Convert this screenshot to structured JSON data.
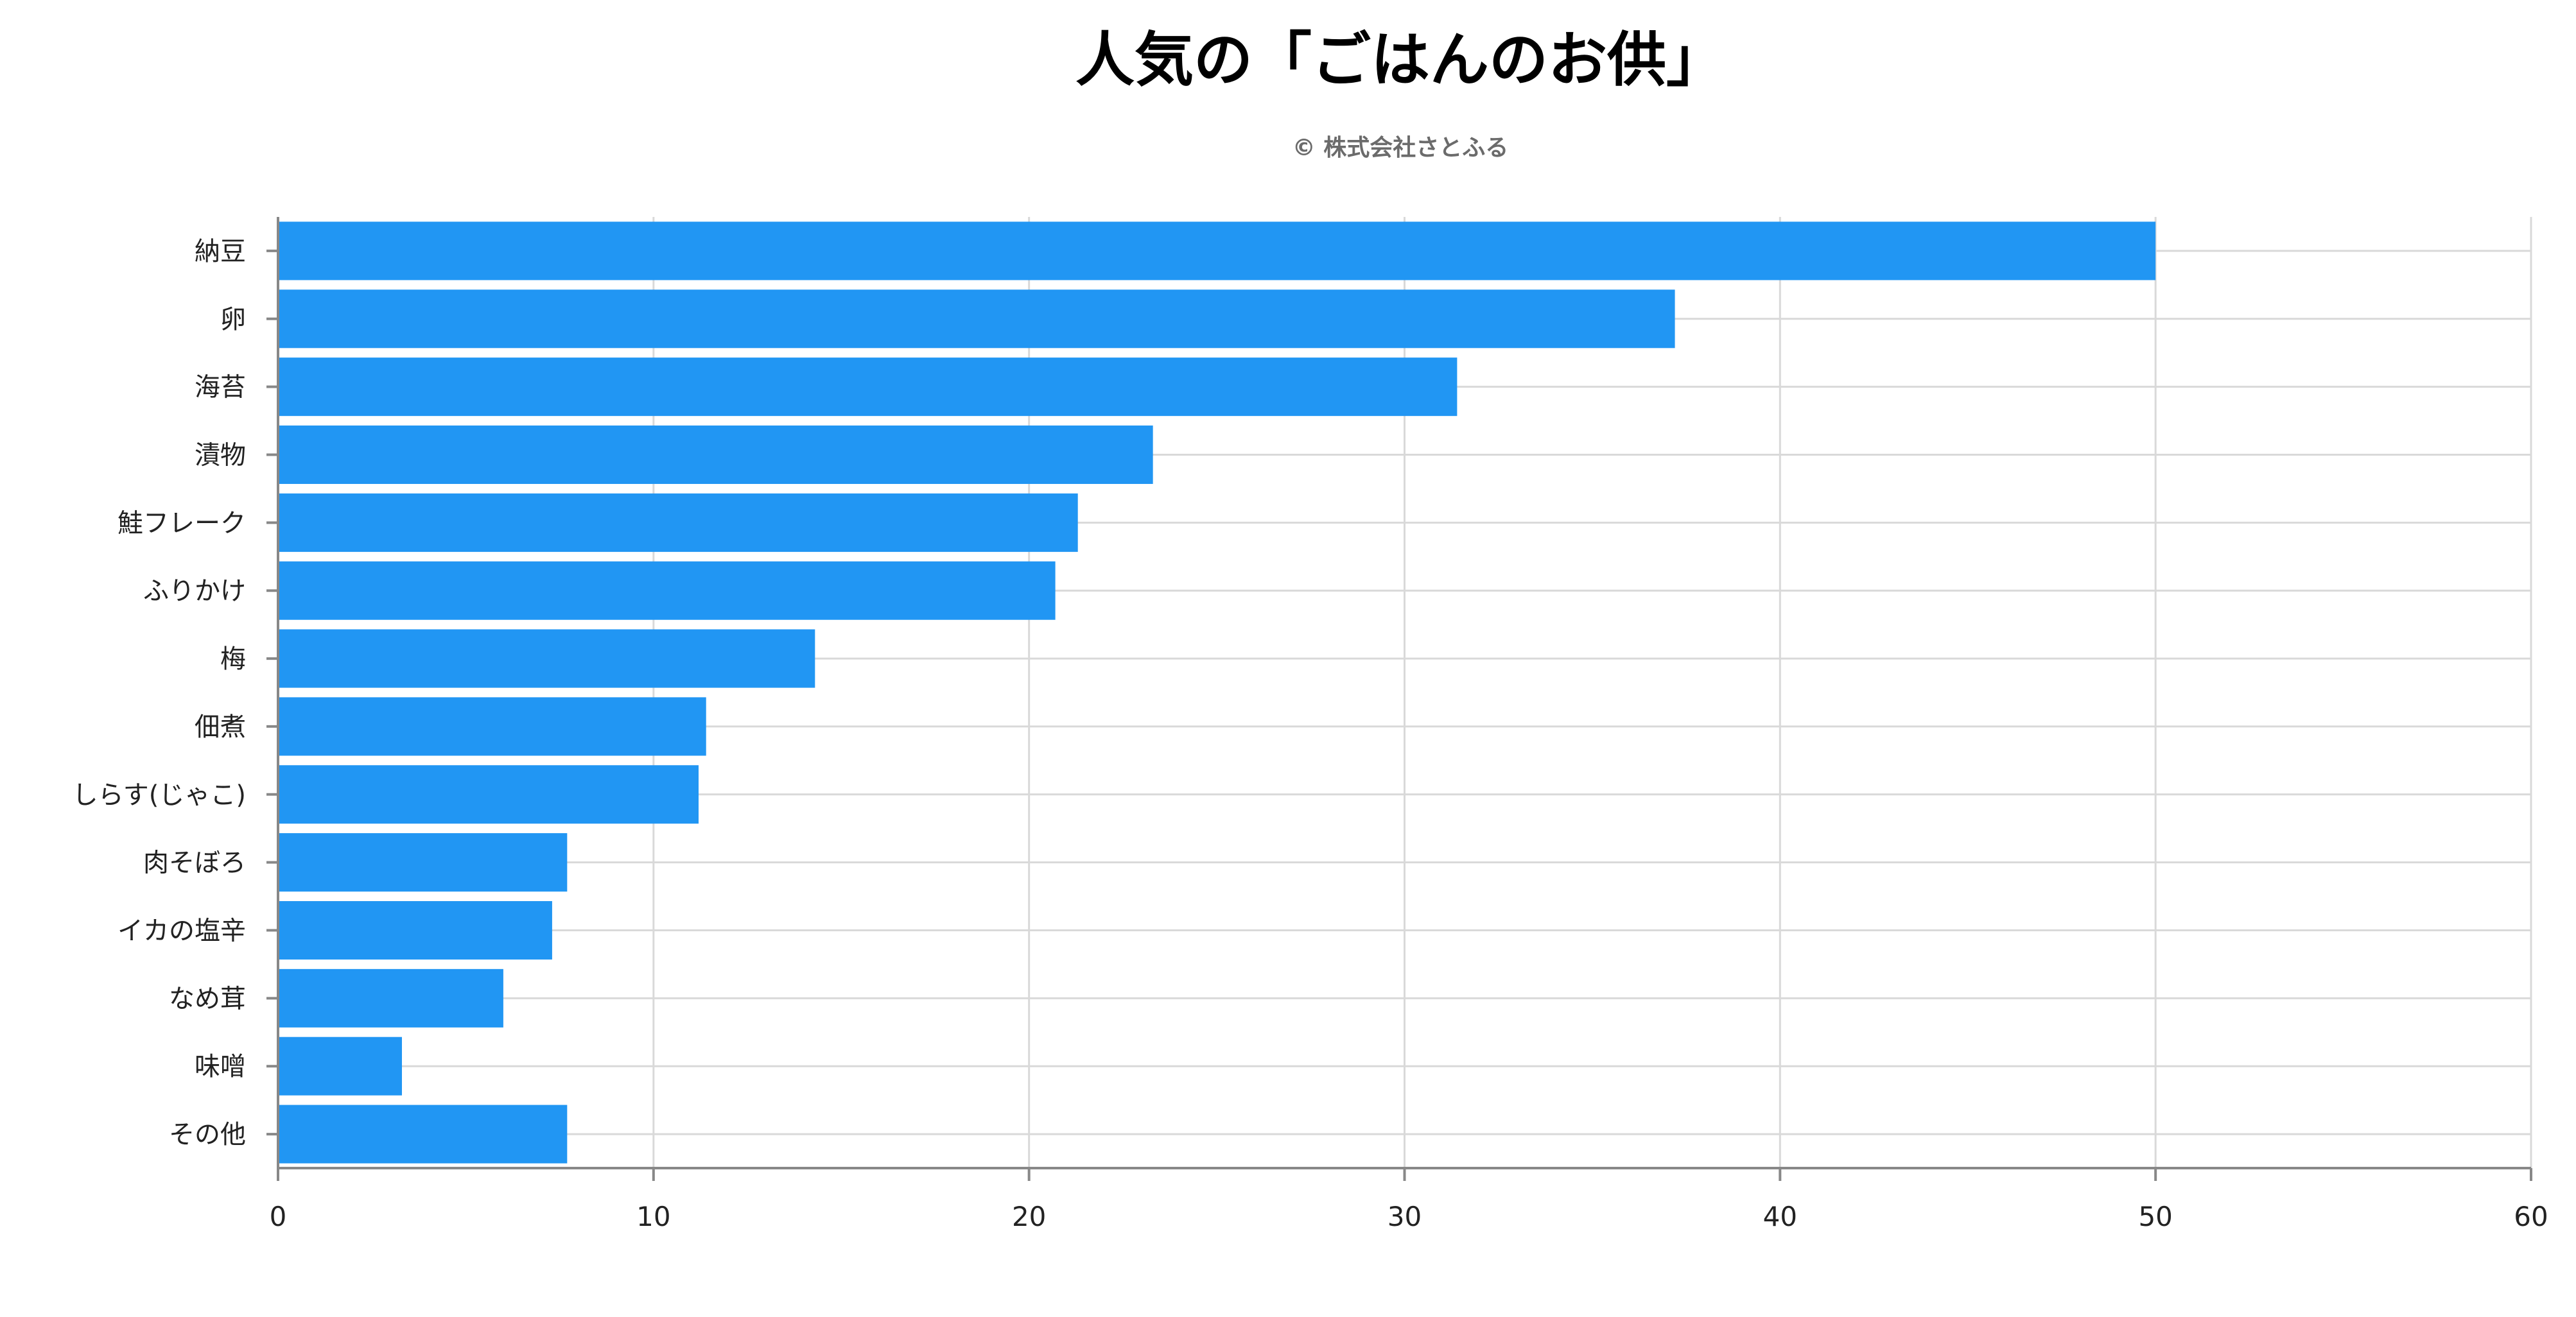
{
  "chart_data": {
    "type": "bar",
    "orientation": "horizontal",
    "title": "人気の「ごはんのお供」",
    "subtitle": "© 株式会社さとふる",
    "categories": [
      "納豆",
      "卵",
      "海苔",
      "漬物",
      "鮭フレーク",
      "ふりかけ",
      "梅",
      "佃煮",
      "しらす(じゃこ)",
      "肉そぼろ",
      "イカの塩辛",
      "なめ茸",
      "味噌",
      "その他"
    ],
    "values": [
      50.0,
      37.2,
      31.4,
      23.3,
      21.3,
      20.7,
      14.3,
      11.4,
      11.2,
      7.7,
      7.3,
      6.0,
      3.3,
      7.7
    ],
    "xlim": [
      0,
      60
    ],
    "xticks": [
      "0",
      "10",
      "20",
      "30",
      "40",
      "50",
      "60"
    ],
    "grid": true,
    "bar_color": "#2196F3",
    "grid_color": "#d9d9d9",
    "axis_color": "#888888"
  }
}
